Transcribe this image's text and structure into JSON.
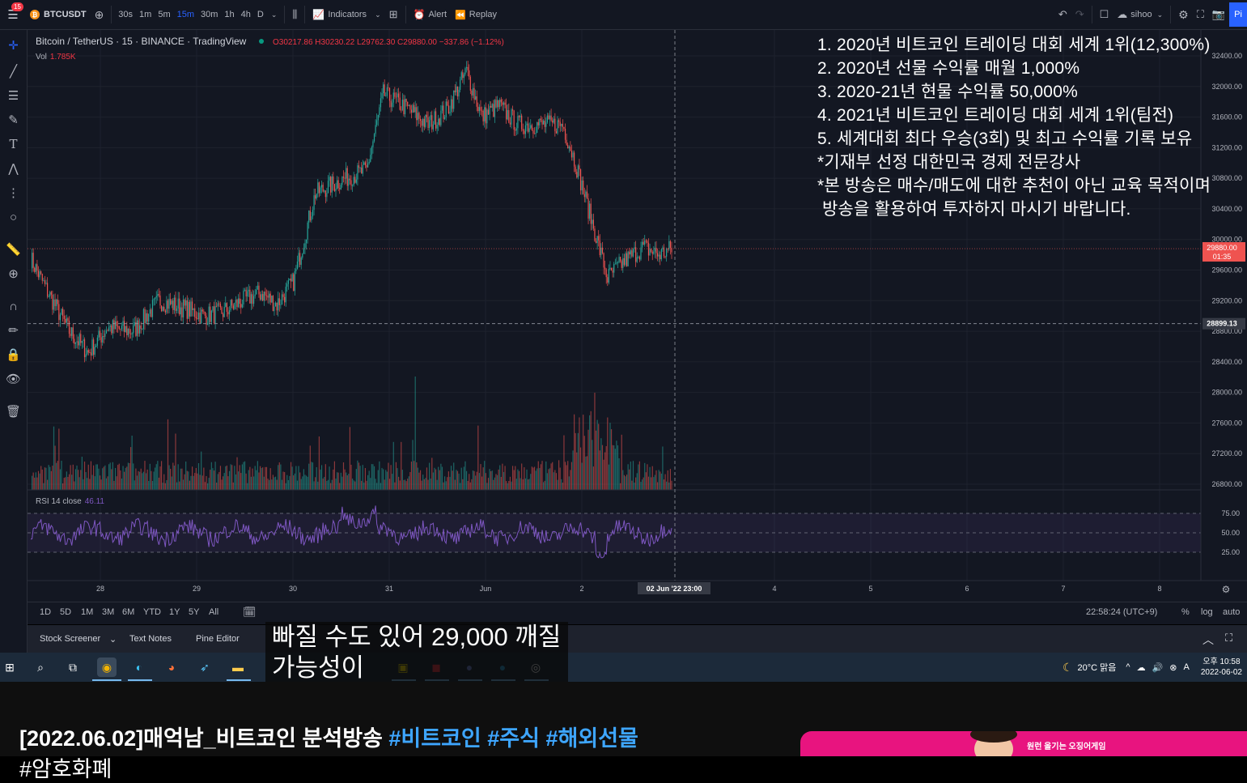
{
  "toolbar": {
    "notification_count": "15",
    "symbol": "BTCUSDT",
    "coin_glyph": "₿",
    "intervals": [
      "30s",
      "1m",
      "5m",
      "15m",
      "30m",
      "1h",
      "4h",
      "D"
    ],
    "active_interval": "15m",
    "indicators_label": "Indicators",
    "alert_label": "Alert",
    "replay_label": "Replay",
    "layout_name": "sihoo",
    "publish_label": "Pi"
  },
  "legend": {
    "title": "Bitcoin / TetherUS · 15 · BINANCE · TradingView",
    "ohlc": "O30217.86 H30230.22 L29762.30 C29880.00 −337.86 (−1.12%)",
    "vol_label": "Vol",
    "vol_value": "1.785K",
    "rsi_label": "RSI 14 close",
    "rsi_value": "46.11"
  },
  "overlay_lines": [
    "1. 2020년 비트코인 트레이딩 대회 세계 1위(12,300%)",
    "2. 2020년 선물 수익률 매월 1,000%",
    "3. 2020-21년 현물 수익률 50,000%",
    "4. 2021년 비트코인 트레이딩 대회 세계 1위(팀전)",
    "5. 세계대회 최다 우승(3회) 및 최고 수익률 기록 보유",
    "*기재부 선정 대한민국 경제 전문강사",
    "*본 방송은 매수/매도에 대한 추천이 아닌 교육 목적이며",
    " 방송을 활용하여 투자하지 마시기 바랍니다."
  ],
  "price_axis": {
    "ticks": [
      "32400.00",
      "32000.00",
      "31600.00",
      "31200.00",
      "30800.00",
      "30400.00",
      "30000.00",
      "29600.00",
      "29200.00",
      "28800.00",
      "28400.00",
      "28000.00",
      "27600.00",
      "27200.00",
      "26800.00"
    ],
    "last_price": "29880.00",
    "countdown": "01:35",
    "crosshair_price": "28899.13",
    "rsi_ticks": [
      "75.00",
      "50.00",
      "25.00"
    ]
  },
  "time_axis": {
    "ticks": [
      "28",
      "29",
      "30",
      "31",
      "Jun",
      "2",
      "4",
      "5",
      "6",
      "7",
      "8"
    ],
    "crosshair_time": "02 Jun '22   23:00"
  },
  "bottom_bar": {
    "ranges": [
      "1D",
      "5D",
      "1M",
      "3M",
      "6M",
      "YTD",
      "1Y",
      "5Y",
      "All"
    ],
    "clock": "22:58:24 (UTC+9)",
    "percent": "%",
    "log": "log",
    "auto": "auto"
  },
  "panel_tabs": [
    "Stock Screener",
    "Text Notes",
    "Pine Editor"
  ],
  "subtitle": {
    "line1": "빠질 수도 있어 29,000 깨질",
    "line2": "가능성이"
  },
  "taskbar": {
    "weather": "20°C 맑음",
    "time": "오후 10:58",
    "date": "2022-06-02",
    "ime": "A"
  },
  "video": {
    "title_prefix": "[2022.06.02]매억남_비트코인 분석방송 ",
    "tags": [
      "#비트코인",
      "#주식",
      "#해외선물"
    ],
    "title_line2": "#암호화폐",
    "ad_text": "원런 올기는 오징어게임"
  },
  "colors": {
    "bg": "#131722",
    "up": "#26a69a",
    "down": "#ef5350",
    "rsi": "#7e57c2",
    "accent": "#2962ff"
  }
}
